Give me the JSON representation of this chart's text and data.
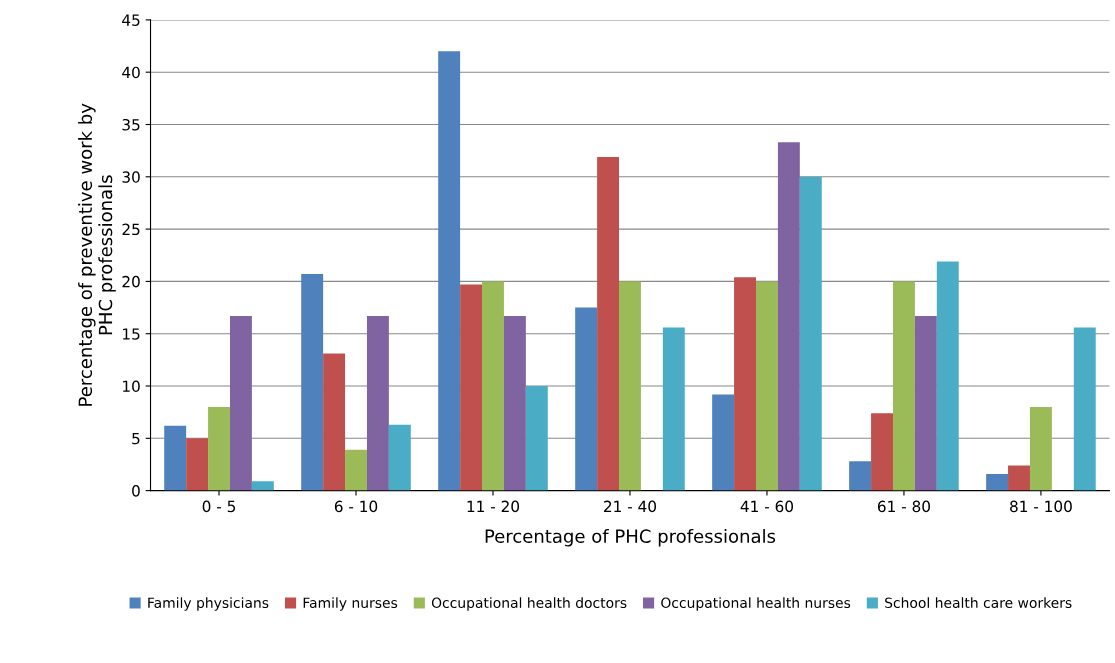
{
  "chart_data": {
    "type": "bar",
    "xlabel": "Percentage of PHC professionals",
    "ylabel": "Percentage of preventive work by\nPHC professionals",
    "categories": [
      "0 - 5",
      "6 - 10",
      "11 - 20",
      "21 - 40",
      "41 - 60",
      "61 - 80",
      "81 - 100"
    ],
    "series": [
      {
        "name": "Family physicians",
        "color": "#4f81bd",
        "values": [
          6.2,
          20.7,
          42,
          17.5,
          9.2,
          2.8,
          1.6
        ]
      },
      {
        "name": "Family nurses",
        "color": "#c0504d",
        "values": [
          5.0,
          13.1,
          19.7,
          31.9,
          20.4,
          7.4,
          2.4
        ]
      },
      {
        "name": "Occupational health doctors",
        "color": "#9bbb59",
        "values": [
          8.0,
          3.9,
          20,
          20,
          20,
          20,
          8
        ]
      },
      {
        "name": "Occupational health nurses",
        "color": "#8064a2",
        "values": [
          16.7,
          16.7,
          16.7,
          0,
          33.3,
          16.7,
          0
        ]
      },
      {
        "name": "School health care workers",
        "color": "#4bacc6",
        "values": [
          0.9,
          6.3,
          10,
          15.6,
          30,
          21.9,
          15.6
        ]
      }
    ],
    "ylim": [
      0,
      45
    ],
    "yticks": [
      0,
      5,
      10,
      15,
      20,
      25,
      30,
      35,
      40,
      45
    ],
    "grid": "y",
    "legend": "bottom"
  }
}
